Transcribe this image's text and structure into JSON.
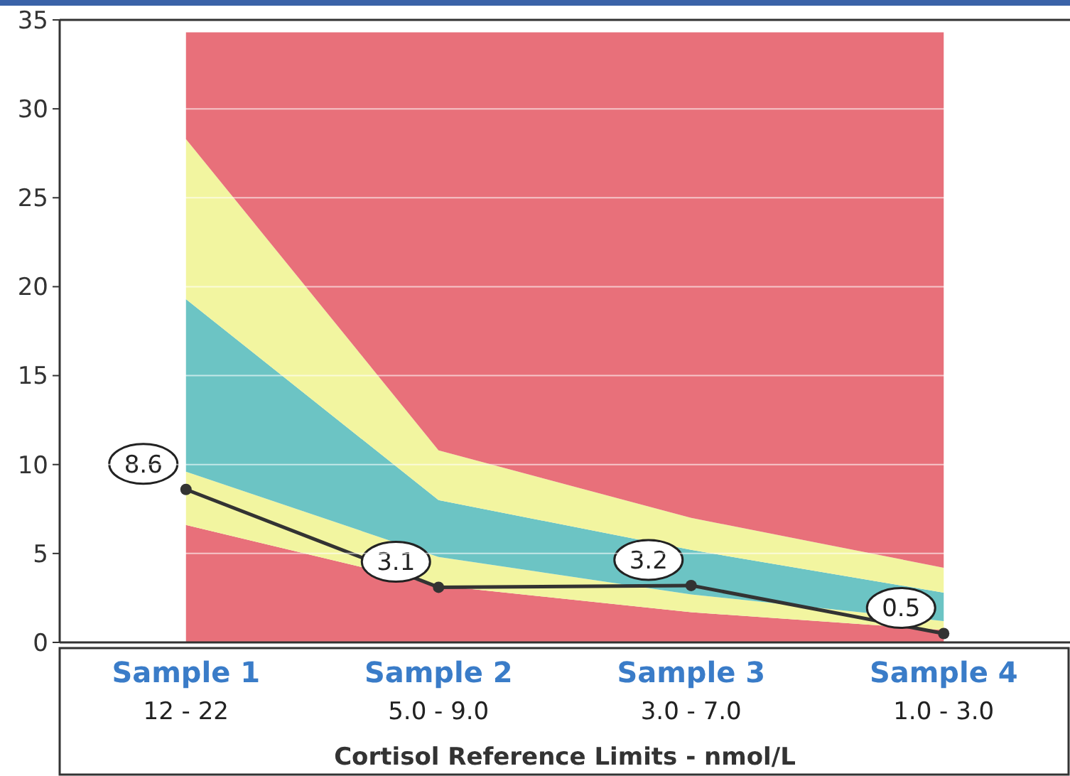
{
  "chart_data": {
    "type": "area",
    "stacked": true,
    "xlabel": "Cortisol Reference Limits - nmol/L",
    "categories": [
      "Sample 1\n12 - 22",
      "Sample 2\n5.0 - 9.0",
      "Sample 3\n3.0 - 7.0",
      "Sample 4\n1.0 - 3.0"
    ],
    "ylim": [
      0,
      35
    ],
    "yticks": [
      0,
      5,
      10,
      15,
      20,
      25,
      30,
      35
    ],
    "grid": "y",
    "series": [
      {
        "color": "#e8707a",
        "values": [
          6.6,
          3.2,
          1.7,
          0.7
        ]
      },
      {
        "color": "#f2f5a0",
        "values": [
          3.0,
          1.6,
          1.0,
          0.5
        ]
      },
      {
        "color": "#6cc4c4",
        "values": [
          9.7,
          3.2,
          2.5,
          1.6
        ]
      },
      {
        "color": "#f2f5a0",
        "values": [
          9.0,
          2.8,
          1.8,
          1.4
        ]
      },
      {
        "color": "#e8707a",
        "values": [
          6.0,
          23.5,
          27.3,
          30.1
        ]
      },
      {
        "type": "line",
        "color": "#333333",
        "marker": "circle",
        "data_labels": true,
        "values": [
          8.6,
          3.1,
          3.2,
          0.5
        ]
      }
    ]
  }
}
